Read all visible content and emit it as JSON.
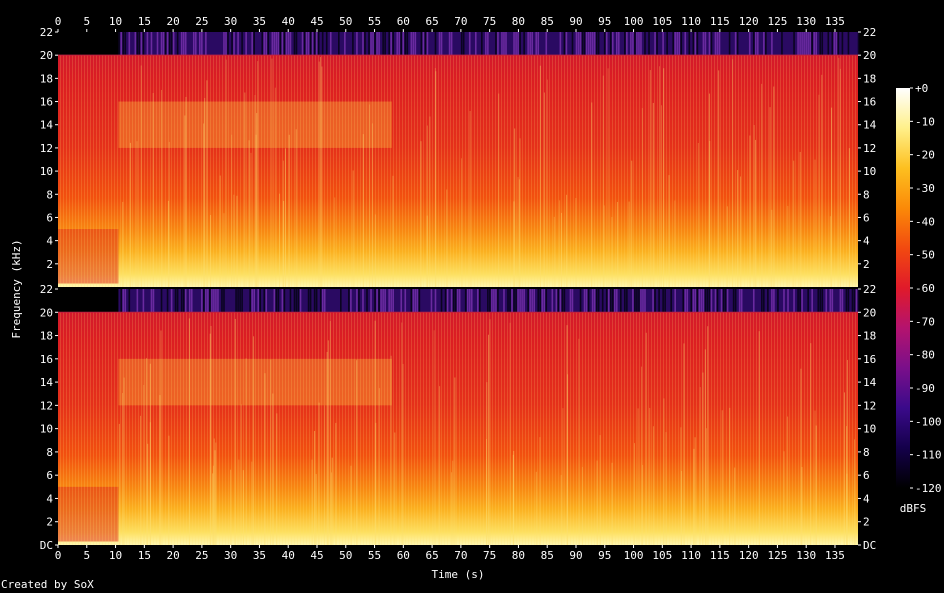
{
  "chart_data": {
    "type": "heatmap",
    "title": "",
    "xlabel": "Time (s)",
    "ylabel": "Frequency (kHz)",
    "xlim": [
      0,
      139
    ],
    "ylim_khz": [
      0,
      22
    ],
    "x_ticks": [
      "0",
      "5",
      "10",
      "15",
      "20",
      "25",
      "30",
      "35",
      "40",
      "45",
      "50",
      "55",
      "60",
      "65",
      "70",
      "75",
      "80",
      "85",
      "90",
      "95",
      "100",
      "105",
      "110",
      "115",
      "120",
      "125",
      "130",
      "135"
    ],
    "y_ticks_top_channel": [
      "2",
      "4",
      "6",
      "8",
      "10",
      "12",
      "14",
      "16",
      "18",
      "20",
      "22"
    ],
    "y_ticks_bottom_channel": [
      "DC",
      "2",
      "4",
      "6",
      "8",
      "10",
      "12",
      "14",
      "16",
      "18",
      "20",
      "22"
    ],
    "channels": 2,
    "colorbar": {
      "unit": "dBFS",
      "ticks": [
        "+0",
        "-10",
        "-20",
        "-30",
        "-40",
        "-50",
        "-60",
        "-70",
        "-80",
        "-90",
        "-100",
        "-110",
        "-120"
      ],
      "range": [
        -120,
        0
      ],
      "colors": [
        "#000000",
        "#14004a",
        "#3a0a8a",
        "#7a0f8a",
        "#b4136e",
        "#e01a2a",
        "#f24a10",
        "#fb8a08",
        "#fdc020",
        "#fff08a",
        "#ffffff"
      ]
    },
    "segments": [
      {
        "t_start": 0,
        "t_end": 5,
        "cutoff_khz": 20,
        "level": "high"
      },
      {
        "t_start": 5,
        "t_end": 10.5,
        "cutoff_khz": 20,
        "level": "high"
      },
      {
        "t_start": 10.5,
        "t_end": 58,
        "cutoff_khz": 20,
        "band_16khz": true,
        "level": "high"
      },
      {
        "t_start": 58,
        "t_end": 139,
        "cutoff_khz": 20,
        "level": "high"
      }
    ]
  },
  "footer": {
    "credit": "Created by SoX"
  }
}
